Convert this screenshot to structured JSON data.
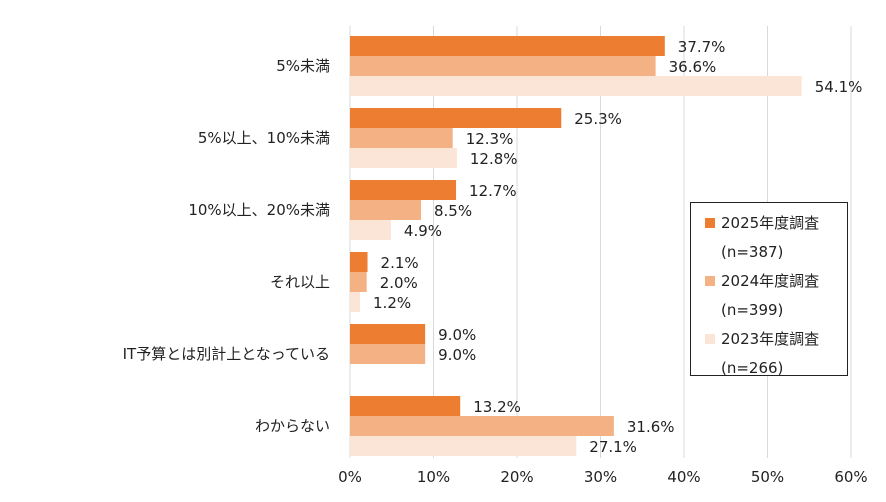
{
  "chart_data": {
    "type": "bar",
    "orientation": "horizontal",
    "categories": [
      "5%未満",
      "5%以上、10%未満",
      "10%以上、20%未満",
      "それ以上",
      "IT予算とは別計上となっている",
      "わからない"
    ],
    "series": [
      {
        "name": "2025年度調査",
        "n_label": "(n=387)",
        "color": "#ED7D31",
        "values": [
          37.7,
          25.3,
          12.7,
          2.1,
          9.0,
          13.2
        ]
      },
      {
        "name": "2024年度調査",
        "n_label": "(n=399)",
        "color": "#F4B183",
        "values": [
          36.6,
          12.3,
          8.5,
          2.0,
          9.0,
          31.6
        ]
      },
      {
        "name": "2023年度調査",
        "n_label": "(n=266)",
        "color": "#FBE5D6",
        "values": [
          54.1,
          12.8,
          4.9,
          1.2,
          null,
          27.1
        ]
      }
    ],
    "xlim": [
      0,
      60
    ],
    "xticks": [
      0,
      10,
      20,
      30,
      40,
      50,
      60
    ],
    "tick_suffix": "%",
    "value_suffix": "%",
    "grid": true,
    "legend_position": "right"
  }
}
